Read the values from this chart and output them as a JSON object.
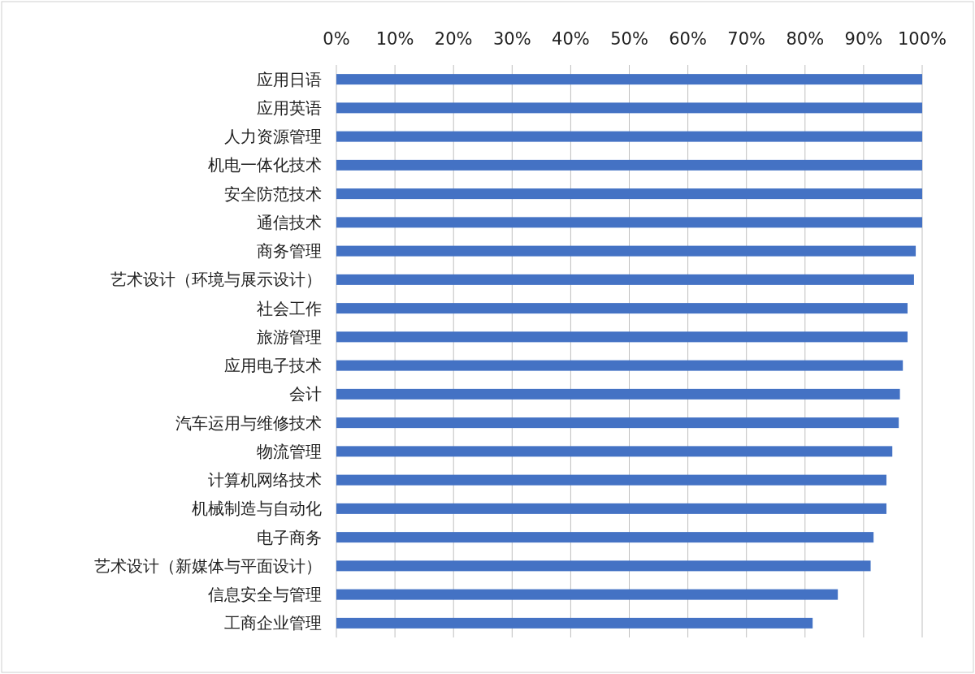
{
  "chart_data": {
    "type": "bar",
    "orientation": "horizontal",
    "color": "#4472c4",
    "categories": [
      "应用日语",
      "应用英语",
      "人力资源管理",
      "机电一体化技术",
      "安全防范技术",
      "通信技术",
      "商务管理",
      "艺术设计（环境与展示设计）",
      "社会工作",
      "旅游管理",
      "应用电子技术",
      "会计",
      "汽车运用与维修技术",
      "物流管理",
      "计算机网络技术",
      "机械制造与自动化",
      "电子商务",
      "艺术设计（新媒体与平面设计）",
      "信息安全与管理",
      "工商企业管理"
    ],
    "values": [
      100,
      100,
      100,
      100,
      100,
      100,
      98.9,
      98.6,
      97.5,
      97.5,
      96.7,
      96.2,
      96.0,
      94.9,
      93.9,
      93.9,
      91.7,
      91.2,
      85.6,
      81.3
    ],
    "xlim": [
      0,
      100
    ],
    "xticks": [
      {
        "value": 0,
        "label": "0%"
      },
      {
        "value": 10,
        "label": "10%"
      },
      {
        "value": 20,
        "label": "20%"
      },
      {
        "value": 30,
        "label": "30%"
      },
      {
        "value": 40,
        "label": "40%"
      },
      {
        "value": 50,
        "label": "50%"
      },
      {
        "value": 60,
        "label": "60%"
      },
      {
        "value": 70,
        "label": "70%"
      },
      {
        "value": 80,
        "label": "80%"
      },
      {
        "value": 90,
        "label": "90%"
      },
      {
        "value": 100,
        "label": "100%"
      }
    ],
    "grid": "x"
  }
}
